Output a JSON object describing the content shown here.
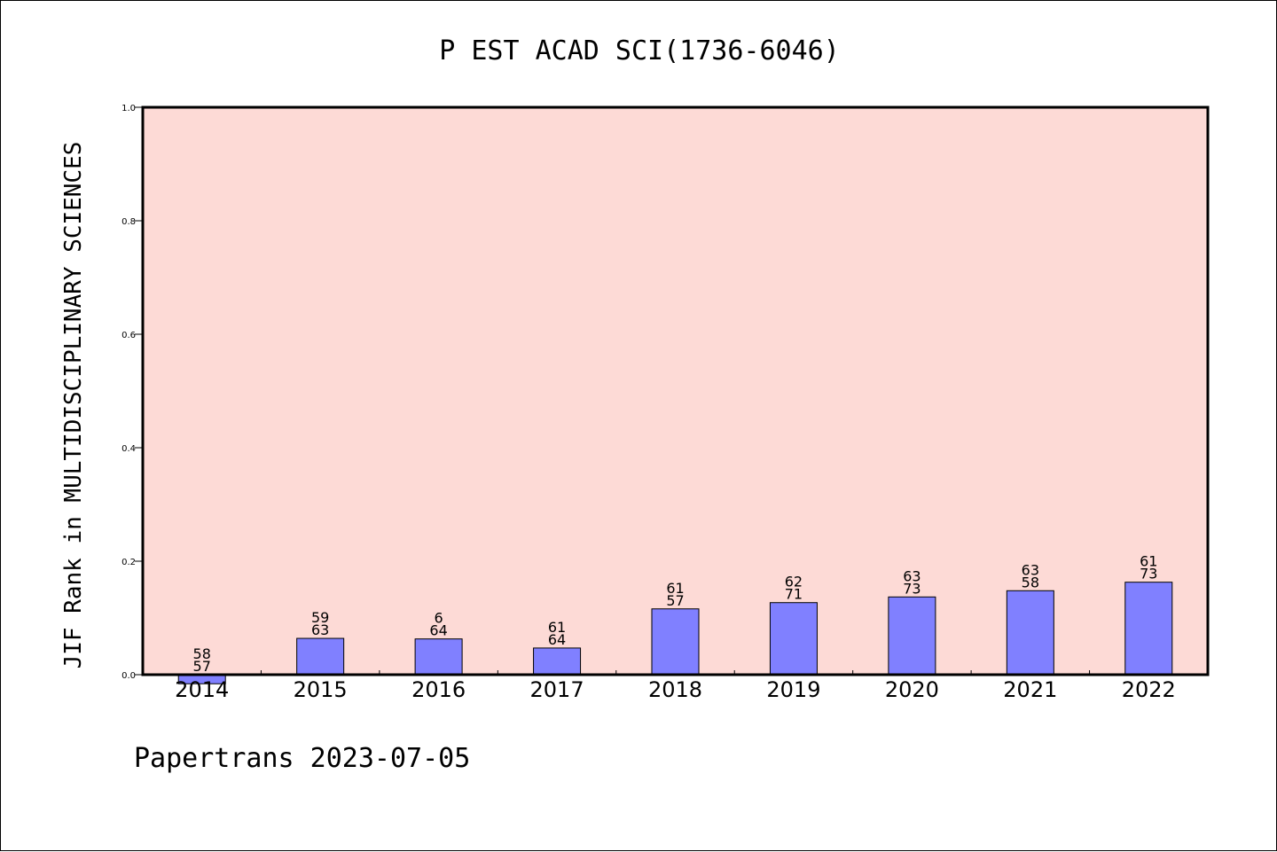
{
  "chart_data": {
    "type": "bar",
    "title": "P EST ACAD SCI(1736-6046)",
    "ylabel": "JIF Rank in MULTIDISCIPLINARY SCIENCES",
    "xlabel": "",
    "ylim": [
      0,
      1.0
    ],
    "yticks": [
      "0.0",
      "0.2",
      "0.4",
      "0.6",
      "0.8",
      "1.0"
    ],
    "categories": [
      "2014",
      "2015",
      "2016",
      "2017",
      "2018",
      "2019",
      "2020",
      "2021",
      "2022"
    ],
    "values": [
      -0.016,
      0.064,
      0.063,
      0.047,
      0.116,
      0.127,
      0.137,
      0.148,
      0.163
    ],
    "bar_labels": [
      [
        "58",
        "57"
      ],
      [
        "59",
        "63"
      ],
      [
        "6",
        "64"
      ],
      [
        "61",
        "64"
      ],
      [
        "61",
        "57"
      ],
      [
        "62",
        "71"
      ],
      [
        "63",
        "73"
      ],
      [
        "63",
        "58"
      ],
      [
        "61",
        "73"
      ]
    ],
    "grid": false,
    "colors": {
      "plot_background": "#fddad6",
      "bar_fill": "#8080ff",
      "bar_stroke": "#000000"
    }
  },
  "footer": "Papertrans 2023-07-05"
}
